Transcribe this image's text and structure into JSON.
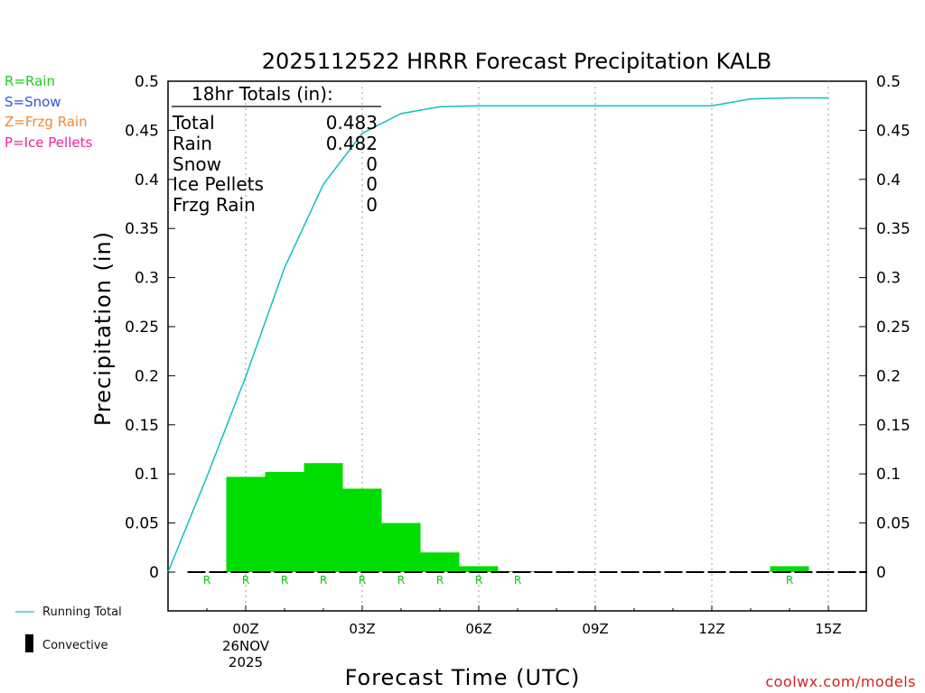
{
  "chart_data": {
    "type": "bar",
    "title": "2025112522 HRRR Forecast Precipitation KALB",
    "xlabel": "Forecast Time (UTC)",
    "ylabel": "Precipitation (in)",
    "ylim": [
      0,
      0.5
    ],
    "y_ticks": [
      "0",
      "0.05",
      "0.1",
      "0.15",
      "0.2",
      "0.25",
      "0.3",
      "0.35",
      "0.4",
      "0.45",
      "0.5"
    ],
    "x_range_hours": [
      -2,
      16
    ],
    "x_ticks": [
      {
        "hour": 0,
        "label": "00Z"
      },
      {
        "hour": 3,
        "label": "03Z"
      },
      {
        "hour": 6,
        "label": "06Z"
      },
      {
        "hour": 9,
        "label": "09Z"
      },
      {
        "hour": 12,
        "label": "12Z"
      },
      {
        "hour": 15,
        "label": "15Z"
      }
    ],
    "date_label_line1": "26NOV",
    "date_label_line2": "2025",
    "series": [
      {
        "name": "Hourly Precipitation (Rain)",
        "kind": "bar",
        "color": "#00dd00",
        "hours": [
          -1,
          0,
          1,
          2,
          3,
          4,
          5,
          6,
          7,
          8,
          9,
          10,
          11,
          12,
          13,
          14,
          15
        ],
        "values": [
          0,
          0.097,
          0.102,
          0.111,
          0.085,
          0.05,
          0.02,
          0.006,
          0.001,
          0,
          0,
          0,
          0,
          0,
          0,
          0.006,
          0
        ]
      },
      {
        "name": "Running Total",
        "kind": "line",
        "color": "#10c0c0",
        "hours": [
          -1,
          0,
          1,
          2,
          3,
          4,
          5,
          6,
          7,
          8,
          9,
          10,
          11,
          12,
          13,
          14,
          15,
          16
        ],
        "values": [
          0,
          0.097,
          0.199,
          0.31,
          0.395,
          0.447,
          0.467,
          0.474,
          0.475,
          0.475,
          0.475,
          0.475,
          0.475,
          0.475,
          0.475,
          0.482,
          0.483,
          0.483
        ]
      }
    ],
    "ptype_markers": {
      "color": "#00cc00",
      "label": "R",
      "hours": [
        -1,
        0,
        1,
        2,
        3,
        4,
        5,
        6,
        7,
        14
      ]
    },
    "totals_box": {
      "title": "18hr Totals (in):",
      "rows": [
        {
          "label": "Total",
          "value": "0.483"
        },
        {
          "label": "Rain",
          "value": "0.482"
        },
        {
          "label": "Snow",
          "value": "0"
        },
        {
          "label": "Ice Pellets",
          "value": "0"
        },
        {
          "label": "Frzg Rain",
          "value": "0"
        }
      ]
    }
  },
  "ptype_legend": [
    {
      "text": "R=Rain",
      "color": "#22cc22"
    },
    {
      "text": "S=Snow",
      "color": "#3355dd"
    },
    {
      "text": "Z=Frzg Rain",
      "color": "#ee8833"
    },
    {
      "text": "P=Ice Pellets",
      "color": "#ee2299"
    }
  ],
  "bottom_legend": {
    "running_total": "Running Total",
    "convective": "Convective"
  },
  "credit": "coolwx.com/models"
}
